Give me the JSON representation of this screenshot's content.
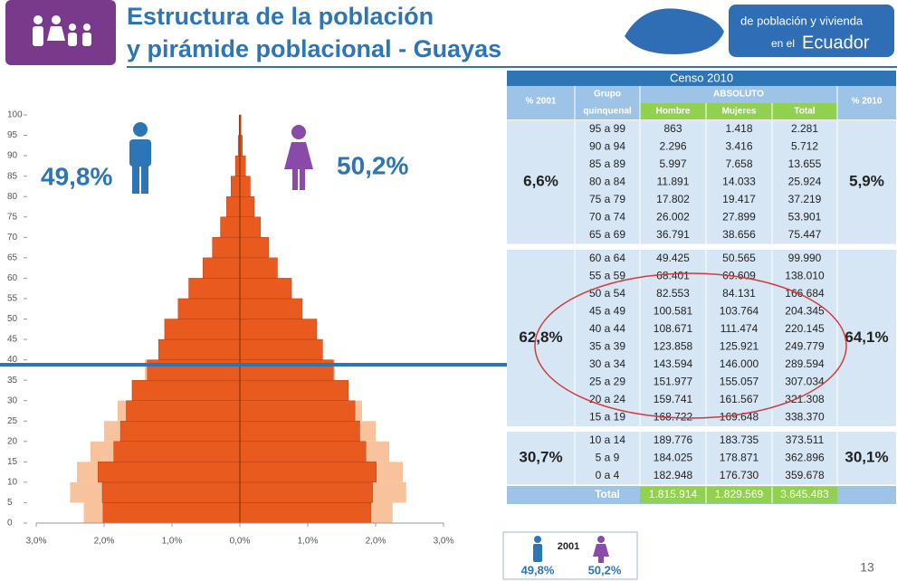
{
  "header": {
    "title": [
      "Estructura de la población",
      "y pirámide poblacional - Guayas"
    ],
    "logo_text": [
      "de población y vivienda",
      "en el",
      "Ecuador"
    ]
  },
  "chart_data": {
    "type": "pyramid",
    "bins": [
      0,
      5,
      10,
      15,
      20,
      25,
      30,
      35,
      40,
      45,
      50,
      55,
      60,
      65,
      70,
      75,
      80,
      85,
      90,
      95,
      100
    ],
    "series": [
      {
        "name": "2001",
        "color": "#f7c29c",
        "male": [
          2.3,
          2.5,
          2.4,
          2.2,
          2.0,
          1.8,
          1.6,
          1.4,
          1.2,
          1.0,
          0.8,
          0.65,
          0.5,
          0.38,
          0.28,
          0.18,
          0.11,
          0.05,
          0.02,
          0.01
        ],
        "female": [
          2.25,
          2.45,
          2.4,
          2.2,
          2.0,
          1.8,
          1.6,
          1.4,
          1.2,
          1.0,
          0.8,
          0.65,
          0.5,
          0.38,
          0.28,
          0.19,
          0.12,
          0.06,
          0.03,
          0.01
        ]
      },
      {
        "color": "#e85a1e",
        "male": [
          2.015,
          2.027,
          2.09,
          1.858,
          1.759,
          1.674,
          1.582,
          1.364,
          1.197,
          1.108,
          0.909,
          0.753,
          0.544,
          0.405,
          0.286,
          0.196,
          0.131,
          0.066,
          0.025,
          0.01
        ],
        "female": [
          1.932,
          1.955,
          2.009,
          1.855,
          1.766,
          1.695,
          1.596,
          1.376,
          1.219,
          1.134,
          0.92,
          0.761,
          0.553,
          0.423,
          0.305,
          0.212,
          0.153,
          0.084,
          0.037,
          0.016
        ]
      }
    ],
    "xlim": [
      -3,
      3
    ],
    "xticks": [
      {
        "value": -3,
        "label": "3,0%"
      },
      {
        "value": -2,
        "label": "2,0%"
      },
      {
        "value": -1,
        "label": "1,0%"
      },
      {
        "value": 0,
        "label": "0,0%"
      },
      {
        "value": 1,
        "label": "1,0%"
      },
      {
        "value": 2,
        "label": "2,0%"
      },
      {
        "value": 3,
        "label": "3,0%"
      }
    ],
    "ylim": [
      0,
      100
    ],
    "yticks": [
      0,
      5,
      10,
      15,
      20,
      25,
      30,
      35,
      40,
      45,
      50,
      55,
      60,
      65,
      70,
      75,
      80,
      85,
      90,
      95,
      100
    ],
    "reference_y": 38.8,
    "annotations": [
      "49,8%",
      "50,2%"
    ],
    "legend_labels": [
      "49,8%",
      "50,2%"
    ]
  },
  "table": {
    "caption": "Censo 2010",
    "headers": {
      "pct_2001": "% 2001",
      "group": [
        "Grupo",
        "quinquenal"
      ],
      "absolute": "ABSOLUTO",
      "male": "Hombre",
      "female": "Mujeres",
      "total": "Total",
      "pct_2010": "% 2010"
    },
    "sections": [
      {
        "pct_2001": "6,6%",
        "pct_2010": "5,9%",
        "rows": [
          [
            "95 a 99",
            "863",
            "1.418",
            "2.281"
          ],
          [
            "90 a 94",
            "2.296",
            "3.416",
            "5.712"
          ],
          [
            "85 a 89",
            "5.997",
            "7.658",
            "13.655"
          ],
          [
            "80 a 84",
            "11.891",
            "14.033",
            "25.924"
          ],
          [
            "75 a 79",
            "17.802",
            "19.417",
            "37.219"
          ],
          [
            "70 a 74",
            "26.002",
            "27.899",
            "53.901"
          ],
          [
            "65 a 69",
            "36.791",
            "38.656",
            "75.447"
          ]
        ]
      },
      {
        "pct_2001": "62,8%",
        "pct_2010": "64,1%",
        "rows": [
          [
            "60 a 64",
            "49.425",
            "50.565",
            "99.990"
          ],
          [
            "55 a 59",
            "68.401",
            "69.609",
            "138.010"
          ],
          [
            "50 a 54",
            "82.553",
            "84.131",
            "166.684"
          ],
          [
            "45 a 49",
            "100.581",
            "103.764",
            "204.345"
          ],
          [
            "40 a 44",
            "108.671",
            "111.474",
            "220.145"
          ],
          [
            "35 a 39",
            "123.858",
            "125.921",
            "249.779"
          ],
          [
            "30 a 34",
            "143.594",
            "146.000",
            "289.594"
          ],
          [
            "25 a 29",
            "151.977",
            "155.057",
            "307.034"
          ],
          [
            "20 a 24",
            "159.741",
            "161.567",
            "321.308"
          ],
          [
            "15 a 19",
            "168.722",
            "169.648",
            "338.370"
          ]
        ]
      },
      {
        "pct_2001": "30,7%",
        "pct_2010": "30,1%",
        "rows": [
          [
            "10 a 14",
            "189.776",
            "183.735",
            "373.511"
          ],
          [
            "5 a 9",
            "184.025",
            "178.871",
            "362.896"
          ],
          [
            "0 a 4",
            "182.948",
            "176.730",
            "359.678"
          ]
        ]
      }
    ],
    "total": [
      "Total",
      "1.815.914",
      "1.829.569",
      "3.645.483"
    ]
  },
  "page_number": "13"
}
